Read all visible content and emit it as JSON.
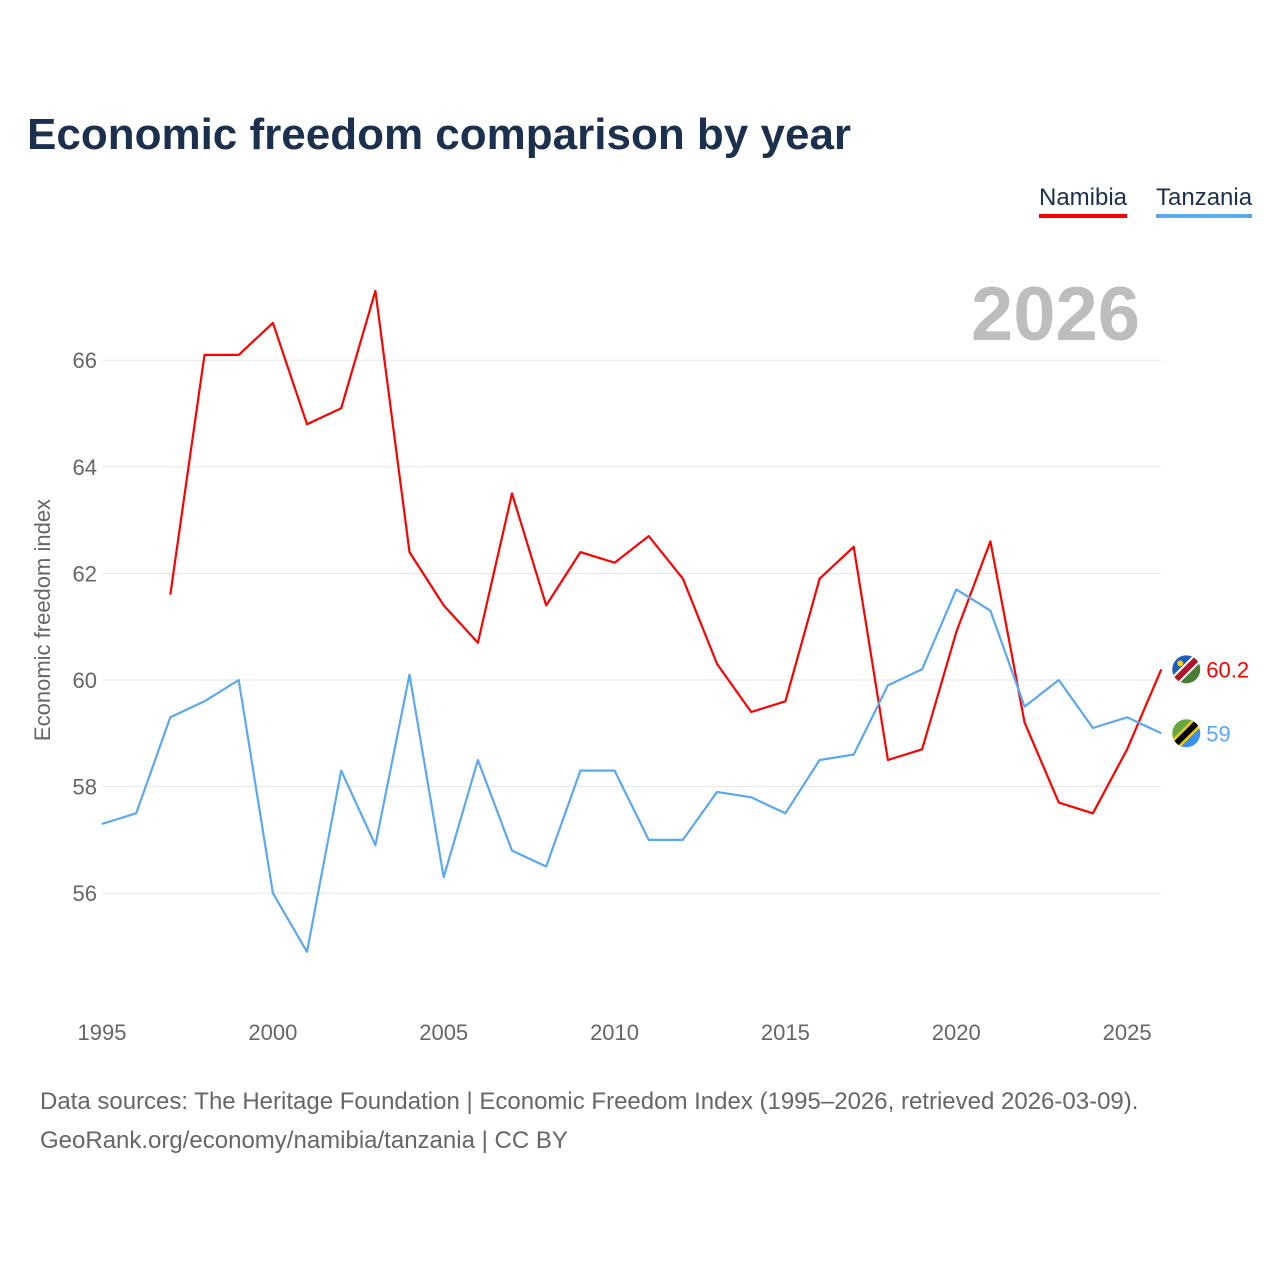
{
  "chart_data": {
    "type": "line",
    "title": "Economic freedom comparison by year",
    "xlabel": "",
    "ylabel": "Economic freedom index",
    "xlim": [
      1995,
      2026
    ],
    "ylim": [
      54.5,
      67.5
    ],
    "x_ticks": [
      1995,
      2000,
      2005,
      2010,
      2015,
      2020,
      2025
    ],
    "y_ticks": [
      56,
      58,
      60,
      62,
      64,
      66
    ],
    "grid": true,
    "year_watermark": "2026",
    "legend_position": "top-right",
    "series": [
      {
        "name": "Namibia",
        "color": "#ff0000",
        "end_label": "60.2",
        "x": [
          1997,
          1998,
          1999,
          2000,
          2001,
          2002,
          2003,
          2004,
          2005,
          2006,
          2007,
          2008,
          2009,
          2010,
          2011,
          2012,
          2013,
          2014,
          2015,
          2016,
          2017,
          2018,
          2019,
          2020,
          2021,
          2022,
          2023,
          2024,
          2025,
          2026
        ],
        "values": [
          61.6,
          66.1,
          66.1,
          66.7,
          64.8,
          65.1,
          67.3,
          62.4,
          61.4,
          60.7,
          63.5,
          61.4,
          62.4,
          62.2,
          62.7,
          61.9,
          60.3,
          59.4,
          59.6,
          61.9,
          62.5,
          58.5,
          58.7,
          60.9,
          62.6,
          59.2,
          57.7,
          57.5,
          58.7,
          60.2
        ]
      },
      {
        "name": "Tanzania",
        "color": "#5ba8ee",
        "end_label": "59",
        "x": [
          1995,
          1996,
          1997,
          1998,
          1999,
          2000,
          2001,
          2002,
          2003,
          2004,
          2005,
          2006,
          2007,
          2008,
          2009,
          2010,
          2011,
          2012,
          2013,
          2014,
          2015,
          2016,
          2017,
          2018,
          2019,
          2020,
          2021,
          2022,
          2023,
          2024,
          2025,
          2026
        ],
        "values": [
          57.3,
          57.5,
          59.3,
          59.6,
          60.0,
          56.0,
          54.9,
          58.3,
          56.9,
          60.1,
          56.3,
          58.5,
          56.8,
          56.5,
          58.3,
          58.3,
          57.0,
          57.0,
          57.9,
          57.8,
          57.5,
          58.5,
          58.6,
          59.9,
          60.2,
          61.7,
          61.3,
          59.5,
          60.0,
          59.1,
          59.3,
          59.0
        ]
      }
    ]
  },
  "footer": {
    "line1": "Data sources: The Heritage Foundation | Economic Freedom Index (1995–2026, retrieved 2026-03-09).",
    "line2": "GeoRank.org/economy/namibia/tanzania | CC BY"
  }
}
